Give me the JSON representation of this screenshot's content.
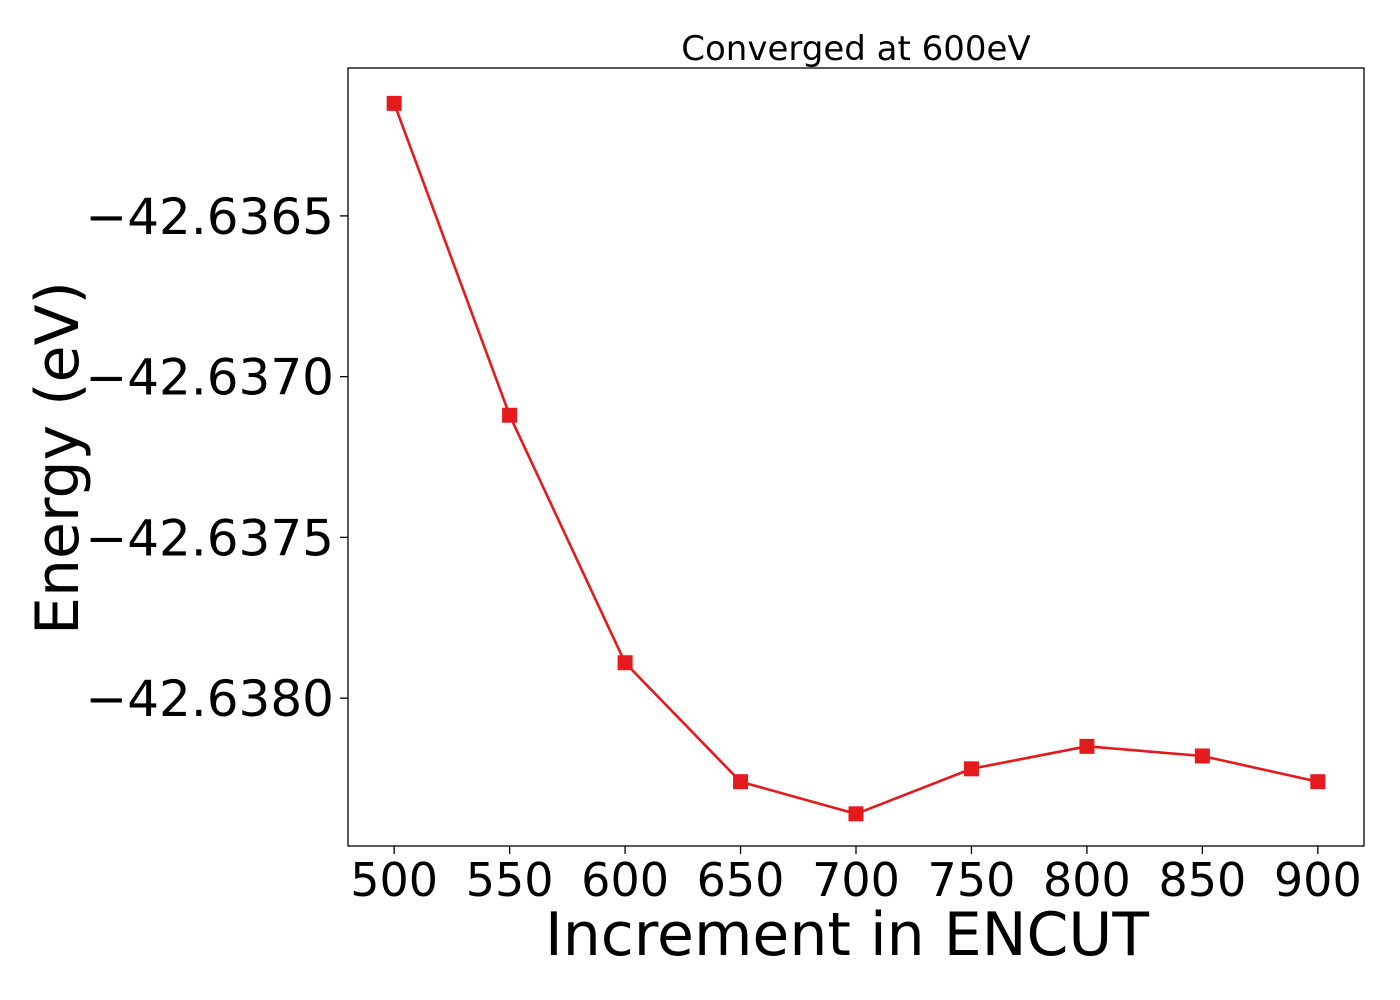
{
  "chart_data": {
    "type": "line",
    "title": "Converged at 600eV",
    "xlabel": "Increment in ENCUT",
    "ylabel": "Energy (eV)",
    "x": [
      500,
      550,
      600,
      650,
      700,
      750,
      800,
      850,
      900
    ],
    "series": [
      {
        "values": [
          -42.63615,
          -42.63712,
          -42.63789,
          -42.63826,
          -42.63836,
          -42.63822,
          -42.63815,
          -42.63818,
          -42.63826
        ],
        "color": "#e41a1c",
        "marker": "square"
      }
    ],
    "xticks": [
      500,
      550,
      600,
      650,
      700,
      750,
      800,
      850,
      900
    ],
    "xtick_labels": [
      "500",
      "550",
      "600",
      "650",
      "700",
      "750",
      "800",
      "850",
      "900"
    ],
    "yticks": [
      -42.6365,
      -42.637,
      -42.6375,
      -42.638
    ],
    "ytick_labels": [
      "−42.6365",
      "−42.6370",
      "−42.6375",
      "−42.6380"
    ],
    "xlim": [
      480,
      920
    ],
    "ylim": [
      -42.63846,
      -42.63604
    ],
    "grid": false,
    "legend": false
  }
}
